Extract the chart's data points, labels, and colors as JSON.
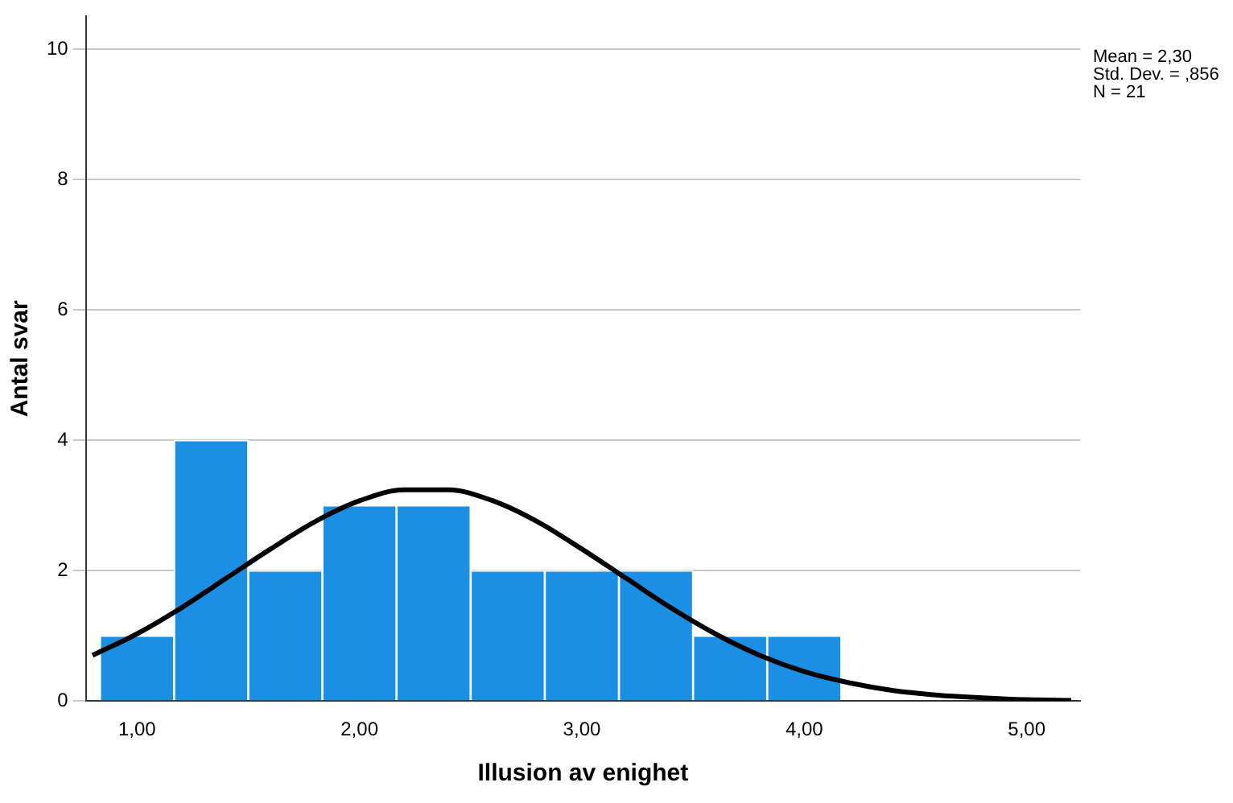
{
  "chart_data": {
    "type": "histogram",
    "xlabel": "Illusion av enighet",
    "ylabel": "Antal svar",
    "bins": [
      0.8333,
      1.1667,
      1.5,
      1.8333,
      2.1667,
      2.5,
      2.8333,
      3.1667,
      3.5,
      3.8333,
      4.1667
    ],
    "values": [
      1,
      4,
      2,
      3,
      3,
      2,
      2,
      2,
      1,
      1
    ],
    "color": "#1a8fe3",
    "series": [
      {
        "type": "line",
        "color": "#000000",
        "x": [
          0.8,
          1.0,
          1.2,
          1.4,
          1.6,
          1.8,
          2.0,
          2.2,
          2.4,
          2.6,
          2.8,
          3.0,
          3.2,
          3.4,
          3.6,
          3.8,
          4.0,
          4.2,
          4.4,
          4.6,
          4.8,
          5.0,
          5.2
        ],
        "values": [
          0.7,
          1.03,
          1.43,
          1.88,
          2.33,
          2.75,
          3.07,
          3.24,
          3.24,
          3.07,
          2.75,
          2.33,
          1.88,
          1.43,
          1.03,
          0.7,
          0.45,
          0.28,
          0.16,
          0.09,
          0.05,
          0.02,
          0.01
        ]
      }
    ],
    "xlim": [
      0.77,
      5.24
    ],
    "ylim": [
      0,
      10.5
    ],
    "xticks": [
      {
        "value": 1,
        "label": "1,00"
      },
      {
        "value": 2,
        "label": "2,00"
      },
      {
        "value": 3,
        "label": "3,00"
      },
      {
        "value": 4,
        "label": "4,00"
      },
      {
        "value": 5,
        "label": "5,00"
      }
    ],
    "yticks": [
      0,
      2,
      4,
      6,
      8,
      10
    ],
    "grid": "y",
    "annotations": [
      "Mean = 2,30",
      "Std. Dev. = ,856",
      "N = 21"
    ]
  }
}
